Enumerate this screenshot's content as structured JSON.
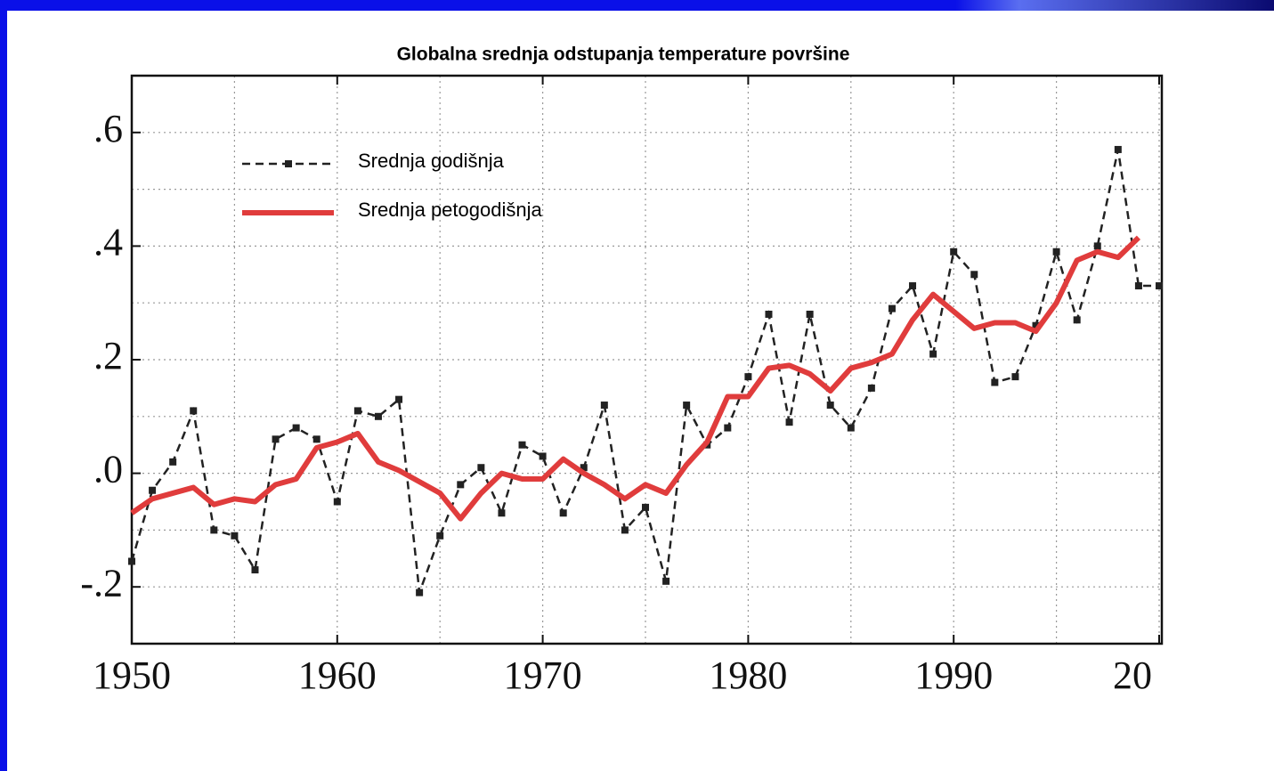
{
  "chart_data": {
    "type": "line",
    "title": "Globalna srednja odstupanja temperature površine",
    "x": [
      1950,
      1951,
      1952,
      1953,
      1954,
      1955,
      1956,
      1957,
      1958,
      1959,
      1960,
      1961,
      1962,
      1963,
      1964,
      1965,
      1966,
      1967,
      1968,
      1969,
      1970,
      1971,
      1972,
      1973,
      1974,
      1975,
      1976,
      1977,
      1978,
      1979,
      1980,
      1981,
      1982,
      1983,
      1984,
      1985,
      1986,
      1987,
      1988,
      1989,
      1990,
      1991,
      1992,
      1993,
      1994,
      1995,
      1996,
      1997,
      1998,
      1999,
      2000
    ],
    "series": [
      {
        "name": "Srednja godišnja",
        "color": "#222222",
        "style": "dashed",
        "marker": "square",
        "values": [
          -0.155,
          -0.03,
          0.02,
          0.11,
          -0.1,
          -0.11,
          -0.17,
          0.06,
          0.08,
          0.06,
          -0.05,
          0.11,
          0.1,
          0.13,
          -0.21,
          -0.11,
          -0.02,
          0.01,
          -0.07,
          0.05,
          0.03,
          -0.07,
          0.01,
          0.12,
          -0.1,
          -0.06,
          -0.19,
          0.12,
          0.05,
          0.08,
          0.17,
          0.28,
          0.09,
          0.28,
          0.12,
          0.08,
          0.15,
          0.29,
          0.33,
          0.21,
          0.39,
          0.35,
          0.16,
          0.17,
          0.26,
          0.39,
          0.27,
          0.4,
          0.57,
          0.33,
          0.33
        ]
      },
      {
        "name": "Srednja petogodišnja",
        "color": "#e03c3c",
        "style": "solid",
        "values": [
          -0.07,
          -0.045,
          -0.035,
          -0.025,
          -0.055,
          -0.045,
          -0.05,
          -0.02,
          -0.01,
          0.045,
          0.055,
          0.07,
          0.02,
          0.005,
          -0.015,
          -0.035,
          -0.08,
          -0.035,
          0.0,
          -0.01,
          -0.01,
          0.025,
          0.0,
          -0.02,
          -0.045,
          -0.02,
          -0.035,
          0.015,
          0.055,
          0.135,
          0.135,
          0.185,
          0.19,
          0.175,
          0.145,
          0.185,
          0.195,
          0.21,
          0.27,
          0.315,
          0.285,
          0.255,
          0.265,
          0.265,
          0.25,
          0.3,
          0.375,
          0.39,
          0.38,
          0.415,
          null
        ]
      }
    ],
    "xlim": [
      1950,
      2000
    ],
    "xticks": [
      1950,
      1960,
      1970,
      1980,
      1990,
      {
        "value": 2000,
        "label": "20"
      }
    ],
    "ylim": [
      -0.3,
      0.7
    ],
    "yticks": [
      {
        "value": -0.2,
        "label": "-.2"
      },
      {
        "value": 0,
        "label": ".0"
      },
      {
        "value": 0.2,
        "label": ".2"
      },
      {
        "value": 0.4,
        "label": ".4"
      },
      {
        "value": 0.6,
        "label": ".6"
      }
    ],
    "grid": true,
    "legend": "upper left"
  }
}
